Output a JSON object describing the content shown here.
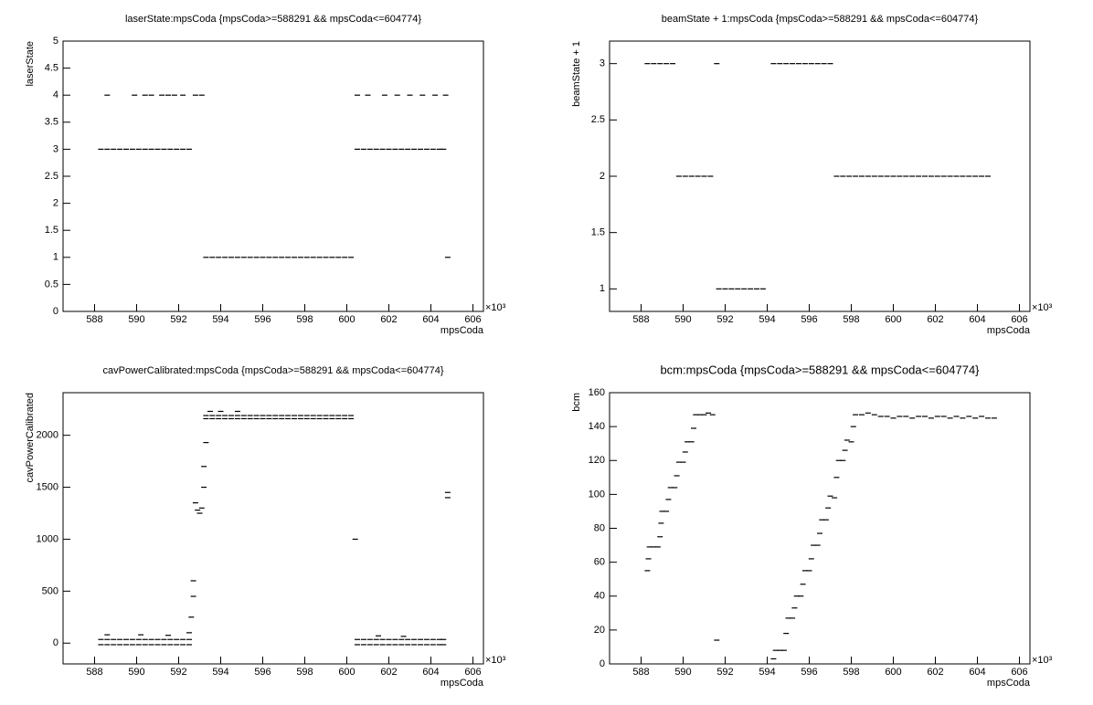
{
  "chart_data": [
    {
      "type": "scatter",
      "title": "laserState:mpsCoda {mpsCoda>=588291 && mpsCoda<=604774}",
      "xlabel": "mpsCoda",
      "ylabel": "laserState",
      "x_exponent": "×10³",
      "color": "#000000",
      "xlim": [
        586.5,
        606.5
      ],
      "ylim": [
        0,
        5
      ],
      "xticks": [
        588,
        590,
        592,
        594,
        596,
        598,
        600,
        602,
        604,
        606
      ],
      "yticks": [
        0,
        0.5,
        1,
        1.5,
        2,
        2.5,
        3,
        3.5,
        4,
        4.5,
        5
      ],
      "x": [
        588.3,
        588.6,
        588.9,
        589.2,
        589.5,
        589.8,
        590.1,
        590.4,
        590.7,
        591.0,
        591.3,
        591.6,
        591.9,
        592.2,
        592.5,
        588.6,
        589.9,
        590.4,
        590.7,
        591.2,
        591.5,
        591.8,
        592.2,
        592.8,
        593.1,
        593.3,
        593.6,
        593.9,
        594.2,
        594.5,
        594.8,
        595.1,
        595.4,
        595.7,
        596.0,
        596.3,
        596.6,
        596.9,
        597.2,
        597.5,
        597.8,
        598.1,
        598.4,
        598.7,
        599.0,
        599.3,
        599.6,
        599.9,
        600.2,
        600.5,
        600.8,
        601.1,
        601.4,
        601.7,
        602.0,
        602.3,
        602.6,
        602.9,
        603.2,
        603.5,
        603.8,
        604.1,
        604.4,
        604.6,
        600.5,
        601.0,
        601.8,
        602.4,
        603.0,
        603.6,
        604.2,
        604.7,
        604.8
      ],
      "values": [
        3,
        3,
        3,
        3,
        3,
        3,
        3,
        3,
        3,
        3,
        3,
        3,
        3,
        3,
        3,
        4,
        4,
        4,
        4,
        4,
        4,
        4,
        4,
        4,
        4,
        1,
        1,
        1,
        1,
        1,
        1,
        1,
        1,
        1,
        1,
        1,
        1,
        1,
        1,
        1,
        1,
        1,
        1,
        1,
        1,
        1,
        1,
        1,
        1,
        3,
        3,
        3,
        3,
        3,
        3,
        3,
        3,
        3,
        3,
        3,
        3,
        3,
        3,
        3,
        4,
        4,
        4,
        4,
        4,
        4,
        4,
        4,
        1
      ]
    },
    {
      "type": "scatter",
      "title": "beamState + 1:mpsCoda {mpsCoda>=588291 && mpsCoda<=604774}",
      "xlabel": "mpsCoda",
      "ylabel": "beamState + 1",
      "x_exponent": "×10³",
      "color": "#000000",
      "xlim": [
        586.5,
        606.5
      ],
      "ylim": [
        0.8,
        3.2
      ],
      "xticks": [
        588,
        590,
        592,
        594,
        596,
        598,
        600,
        602,
        604,
        606
      ],
      "yticks": [
        1,
        1.5,
        2,
        2.5,
        3
      ],
      "x": [
        588.3,
        588.6,
        588.9,
        589.2,
        589.5,
        589.8,
        590.1,
        590.4,
        590.7,
        591.0,
        591.3,
        591.6,
        591.7,
        592.0,
        592.3,
        592.6,
        592.9,
        593.2,
        593.5,
        593.8,
        594.3,
        594.6,
        594.9,
        595.2,
        595.5,
        595.8,
        596.1,
        596.4,
        596.7,
        597.0,
        597.3,
        597.6,
        597.9,
        598.2,
        598.5,
        598.8,
        599.1,
        599.4,
        599.7,
        600.0,
        600.3,
        600.6,
        600.9,
        601.2,
        601.5,
        601.8,
        602.1,
        602.4,
        602.7,
        603.0,
        603.3,
        603.6,
        603.9,
        604.2,
        604.5
      ],
      "values": [
        3,
        3,
        3,
        3,
        3,
        2,
        2,
        2,
        2,
        2,
        2,
        3,
        1,
        1,
        1,
        1,
        1,
        1,
        1,
        1,
        3,
        3,
        3,
        3,
        3,
        3,
        3,
        3,
        3,
        3,
        2,
        2,
        2,
        2,
        2,
        2,
        2,
        2,
        2,
        2,
        2,
        2,
        2,
        2,
        2,
        2,
        2,
        2,
        2,
        2,
        2,
        2,
        2,
        2,
        2
      ]
    },
    {
      "type": "scatter",
      "title": "cavPowerCalibrated:mpsCoda {mpsCoda>=588291 && mpsCoda<=604774}",
      "xlabel": "mpsCoda",
      "ylabel": "cavPowerCalibrated",
      "x_exponent": "×10³",
      "color": "#000000",
      "xlim": [
        586.5,
        606.5
      ],
      "ylim": [
        -200,
        2410
      ],
      "xticks": [
        588,
        590,
        592,
        594,
        596,
        598,
        600,
        602,
        604,
        606
      ],
      "yticks": [
        0,
        500,
        1000,
        1500,
        2000
      ],
      "x": [
        588.3,
        588.6,
        588.9,
        589.2,
        589.5,
        589.8,
        590.1,
        590.4,
        590.7,
        591.0,
        591.3,
        591.6,
        591.9,
        592.2,
        592.5,
        588.3,
        588.6,
        588.9,
        589.2,
        589.5,
        589.8,
        590.1,
        590.4,
        590.7,
        591.0,
        591.3,
        591.6,
        591.9,
        592.2,
        592.5,
        592.5,
        592.6,
        592.7,
        592.7,
        592.8,
        592.9,
        593.0,
        593.1,
        593.2,
        593.2,
        593.3,
        593.3,
        593.6,
        593.9,
        594.2,
        594.5,
        594.8,
        595.1,
        595.4,
        595.7,
        596.0,
        596.3,
        596.6,
        596.9,
        597.2,
        597.5,
        597.8,
        598.1,
        598.4,
        598.7,
        599.0,
        599.3,
        599.6,
        599.9,
        600.2,
        593.3,
        593.6,
        593.9,
        594.2,
        594.5,
        594.8,
        595.1,
        595.4,
        595.7,
        596.0,
        596.3,
        596.6,
        596.9,
        597.2,
        597.5,
        597.8,
        598.1,
        598.4,
        598.7,
        599.0,
        599.3,
        599.6,
        599.9,
        600.2,
        593.5,
        594.0,
        594.8,
        600.5,
        600.8,
        601.1,
        601.4,
        601.7,
        602.0,
        602.3,
        602.6,
        602.9,
        603.2,
        603.5,
        603.8,
        604.1,
        604.4,
        604.6,
        600.5,
        600.8,
        601.1,
        601.4,
        601.7,
        602.0,
        602.3,
        602.6,
        602.9,
        603.2,
        603.5,
        603.8,
        604.1,
        604.4,
        604.6,
        600.4,
        604.8,
        604.8,
        588.6,
        590.2,
        591.5,
        601.5,
        602.7
      ],
      "values": [
        35,
        35,
        35,
        35,
        35,
        35,
        35,
        35,
        35,
        35,
        35,
        35,
        35,
        35,
        35,
        -15,
        -15,
        -15,
        -15,
        -15,
        -15,
        -15,
        -15,
        -15,
        -15,
        -15,
        -15,
        -15,
        -15,
        -15,
        100,
        250,
        450,
        600,
        1350,
        1280,
        1250,
        1300,
        1500,
        1700,
        1930,
        2190,
        2190,
        2190,
        2190,
        2190,
        2190,
        2190,
        2190,
        2190,
        2190,
        2190,
        2190,
        2190,
        2190,
        2190,
        2190,
        2190,
        2190,
        2190,
        2190,
        2190,
        2190,
        2190,
        2190,
        2160,
        2160,
        2160,
        2160,
        2160,
        2160,
        2160,
        2160,
        2160,
        2160,
        2160,
        2160,
        2160,
        2160,
        2160,
        2160,
        2160,
        2160,
        2160,
        2160,
        2160,
        2160,
        2160,
        2160,
        2230,
        2230,
        2230,
        35,
        35,
        35,
        35,
        35,
        35,
        35,
        35,
        35,
        35,
        35,
        35,
        35,
        35,
        35,
        -15,
        -15,
        -15,
        -15,
        -15,
        -15,
        -15,
        -15,
        -15,
        -15,
        -15,
        -15,
        -15,
        -15,
        -15,
        1000,
        1400,
        1450,
        80,
        80,
        75,
        70,
        65
      ]
    },
    {
      "type": "scatter",
      "title": "bcm:mpsCoda {mpsCoda>=588291 && mpsCoda<=604774}",
      "xlabel": "mpsCoda",
      "ylabel": "bcm",
      "x_exponent": "×10³",
      "color": "#000000",
      "xlim": [
        586.5,
        606.5
      ],
      "ylim": [
        0,
        160
      ],
      "xticks": [
        588,
        590,
        592,
        594,
        596,
        598,
        600,
        602,
        604,
        606
      ],
      "yticks": [
        0,
        20,
        40,
        60,
        80,
        100,
        120,
        140,
        160
      ],
      "x": [
        588.3,
        588.35,
        588.4,
        588.6,
        588.8,
        588.9,
        588.95,
        589.0,
        589.2,
        589.3,
        589.4,
        589.6,
        589.7,
        589.8,
        590.0,
        590.1,
        590.2,
        590.4,
        590.5,
        590.6,
        590.8,
        591.0,
        591.2,
        591.4,
        591.6,
        594.3,
        594.4,
        594.6,
        594.8,
        594.9,
        595.0,
        595.2,
        595.3,
        595.4,
        595.6,
        595.7,
        595.8,
        596.0,
        596.1,
        596.2,
        596.4,
        596.5,
        596.6,
        596.8,
        596.9,
        597.0,
        597.2,
        597.3,
        597.4,
        597.6,
        597.7,
        597.8,
        598.0,
        598.1,
        598.2,
        598.5,
        598.8,
        599.1,
        599.4,
        599.7,
        600.0,
        600.3,
        600.6,
        600.9,
        601.2,
        601.5,
        601.8,
        602.1,
        602.4,
        602.7,
        603.0,
        603.3,
        603.6,
        603.9,
        604.2,
        604.5,
        604.8
      ],
      "values": [
        55,
        62,
        69,
        69,
        69,
        75,
        83,
        90,
        90,
        97,
        104,
        104,
        111,
        119,
        119,
        125,
        131,
        131,
        139,
        147,
        147,
        147,
        148,
        147,
        14,
        3,
        8,
        8,
        8,
        18,
        27,
        27,
        33,
        40,
        40,
        47,
        55,
        55,
        62,
        70,
        70,
        77,
        85,
        85,
        92,
        99,
        98,
        110,
        120,
        120,
        126,
        132,
        131,
        140,
        147,
        147,
        148,
        147,
        146,
        146,
        145,
        146,
        146,
        145,
        146,
        146,
        145,
        146,
        146,
        145,
        146,
        145,
        146,
        145,
        146,
        145,
        145
      ]
    }
  ]
}
